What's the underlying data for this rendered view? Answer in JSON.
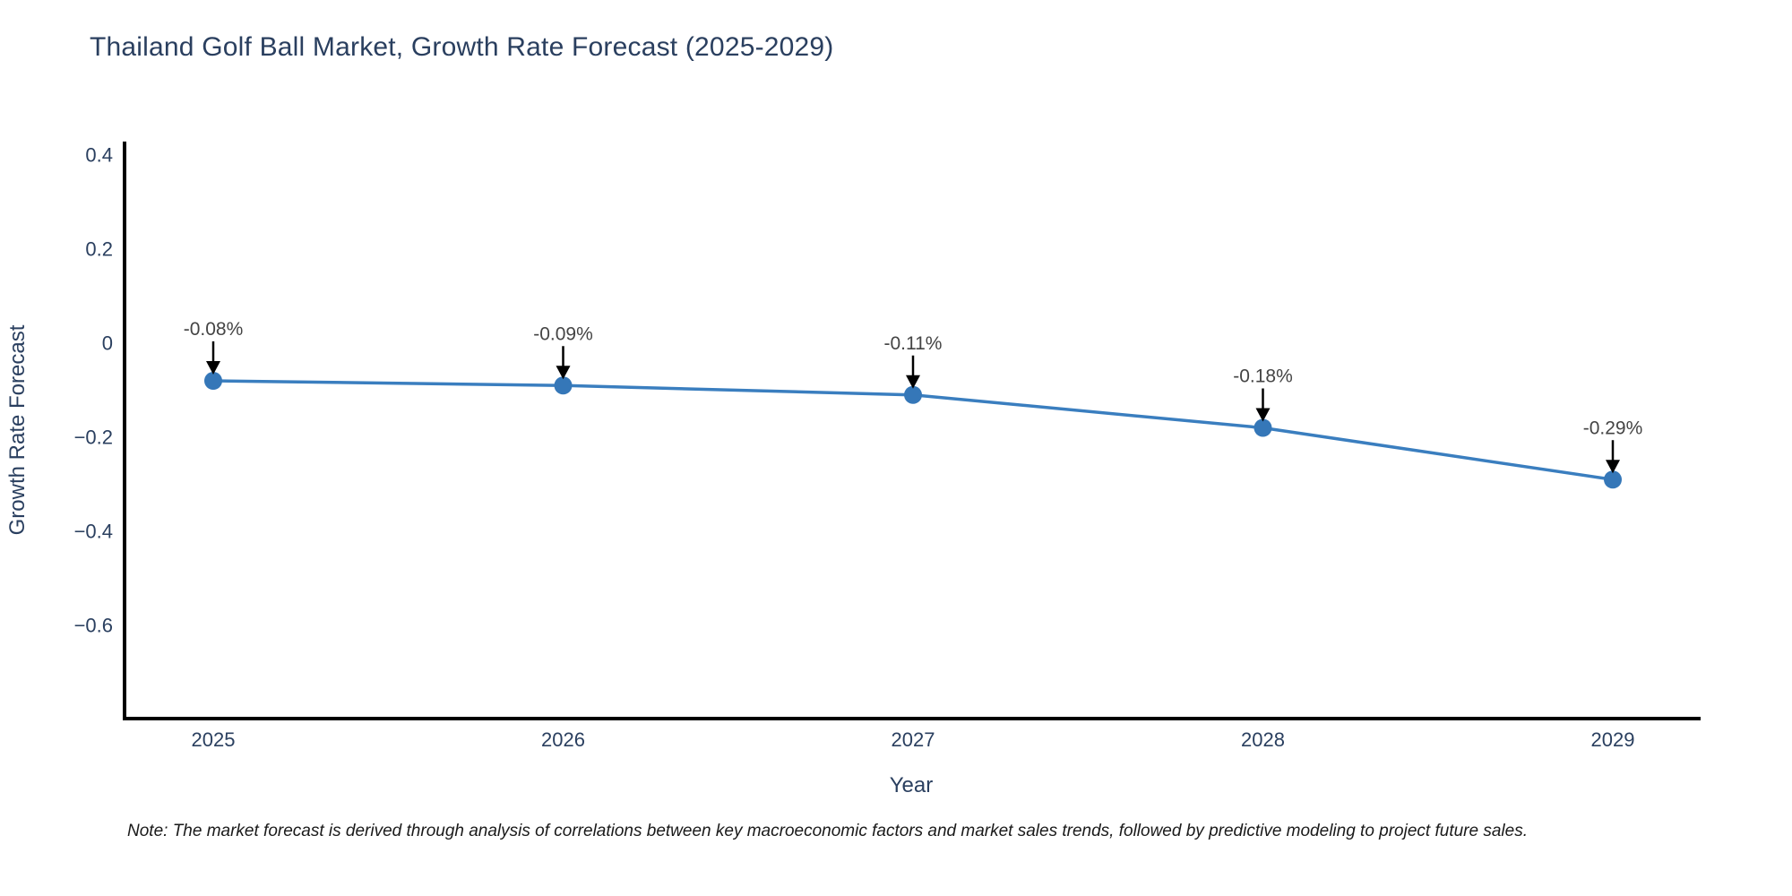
{
  "title": "Thailand Golf Ball Market, Growth Rate Forecast (2025-2029)",
  "note": "Note: The market forecast is derived through analysis of correlations between key macroeconomic factors and market sales trends, followed by predictive modeling to project future sales.",
  "chart_data": {
    "type": "line",
    "title": "Thailand Golf Ball Market, Growth Rate Forecast (2025-2029)",
    "xlabel": "Year",
    "ylabel": "Growth Rate Forecast",
    "x": [
      2025,
      2026,
      2027,
      2028,
      2029
    ],
    "xticklabels": [
      "2025",
      "2026",
      "2027",
      "2028",
      "2029"
    ],
    "series": [
      {
        "name": "Growth Rate Forecast",
        "values": [
          -0.08,
          -0.09,
          -0.11,
          -0.18,
          -0.29
        ]
      }
    ],
    "annotations": [
      "-0.08%",
      "-0.09%",
      "-0.11%",
      "-0.18%",
      "-0.29%"
    ],
    "yticks": [
      0.4,
      0.2,
      0,
      -0.2,
      -0.4,
      -0.6
    ],
    "yticklabels": [
      "0.4",
      "0.2",
      "0",
      "−0.2",
      "−0.4",
      "−0.6"
    ],
    "ylim": [
      -0.83,
      0.43
    ],
    "grid": false,
    "legend": false,
    "colors": {
      "line": "#3a7ebf",
      "marker": "#3577b8",
      "axis": "#000000",
      "tick_text": "#2a3f5f",
      "axis_title_text": "#2a3f5f",
      "annotation_text": "#444444",
      "annotation_arrow": "#000000",
      "background": "#ffffff"
    }
  }
}
